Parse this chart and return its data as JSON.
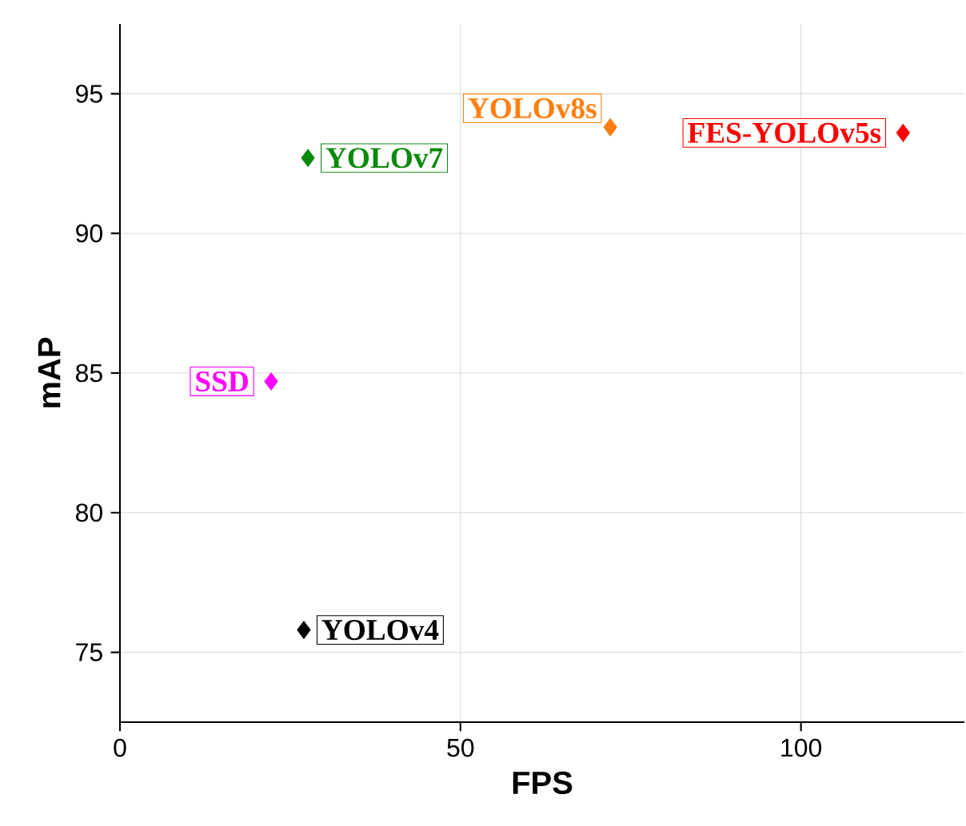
{
  "chart_data": {
    "type": "scatter",
    "xlabel": "FPS",
    "ylabel": "mAP",
    "xlim": [
      0,
      124
    ],
    "ylim": [
      72.5,
      97.5
    ],
    "xticks": [
      0,
      50,
      100
    ],
    "yticks": [
      75,
      80,
      85,
      90,
      95
    ],
    "grid": true,
    "marker": "diamond",
    "series": [
      {
        "name": "YOLOv4",
        "color": "#000000",
        "x": [
          27
        ],
        "values": [
          75.8
        ]
      },
      {
        "name": "YOLOv7",
        "color": "#0a8a0a",
        "x": [
          27.6
        ],
        "values": [
          92.7
        ]
      },
      {
        "name": "SSD",
        "color": "#ff00ff",
        "x": [
          22.2
        ],
        "values": [
          84.7
        ]
      },
      {
        "name": "YOLOv8s",
        "color": "#ff7f0e",
        "x": [
          72
        ],
        "values": [
          93.8
        ]
      },
      {
        "name": "FES-YOLOv5s",
        "color": "#ff0000",
        "x": [
          115
        ],
        "values": [
          93.6
        ]
      }
    ]
  }
}
